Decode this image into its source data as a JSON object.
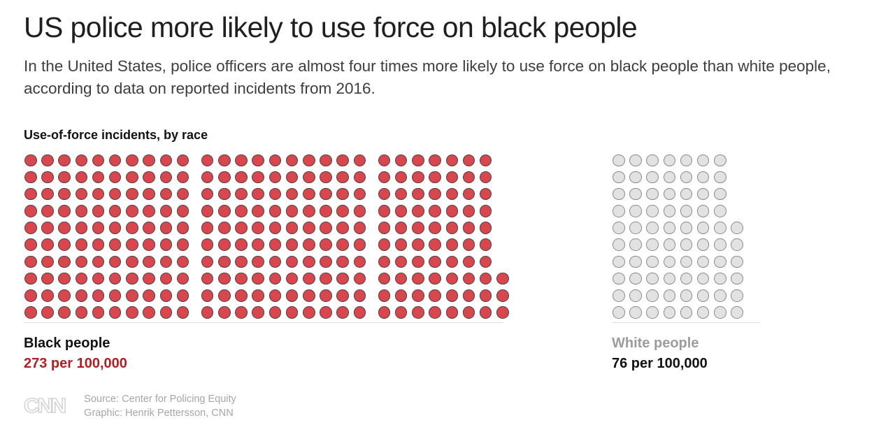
{
  "header": {
    "title": "US police more likely to use force on black people",
    "subtitle": "In the United States, police officers are almost four times more likely to use force on black people than white people, according to data on reported incidents from 2016."
  },
  "chart_data": {
    "type": "waffle",
    "title": "Use-of-force incidents, by race",
    "dot_value": 1,
    "rows_per_block": 10,
    "cols_per_block": 10,
    "legend_position": "below",
    "series": [
      {
        "name": "Black people",
        "value": 273,
        "value_label": "273 per 100,000",
        "dot_fill": "#d8464e",
        "dot_border": "#4e4347"
      },
      {
        "name": "White people",
        "value": 76,
        "value_label": "76 per 100,000",
        "dot_fill": "#e2e2e2",
        "dot_border": "#8b8b8b"
      }
    ]
  },
  "footer": {
    "logo": "CNN",
    "source_line": "Source: Center for Policing Equity",
    "credit_line": "Graphic: Henrik Pettersson, CNN"
  }
}
